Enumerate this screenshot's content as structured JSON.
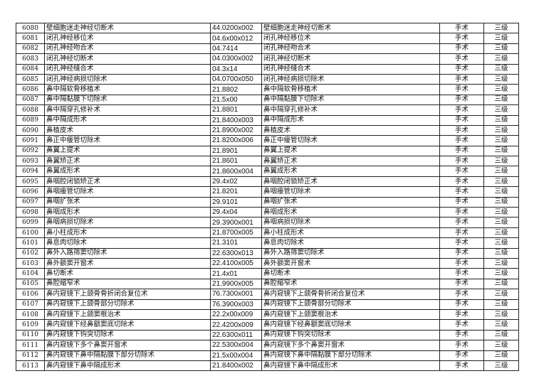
{
  "rows": [
    [
      "6080",
      "壁细胞迷走神经切断术",
      "44.0200x002",
      "壁细胞迷走神经切断术",
      "手术",
      "三级"
    ],
    [
      "6081",
      "闭孔神经移位术",
      "04.6x00x012",
      "闭孔神经移位术",
      "手术",
      "三级"
    ],
    [
      "6082",
      "闭孔神经吻合术",
      "04.7414",
      "闭孔神经吻合术",
      "手术",
      "三级"
    ],
    [
      "6083",
      "闭孔神经切断术",
      "04.0300x002",
      "闭孔神经切断术",
      "手术",
      "三级"
    ],
    [
      "6084",
      "闭孔神经缝合术",
      "04.3x14",
      "闭孔神经缝合术",
      "手术",
      "三级"
    ],
    [
      "6085",
      "闭孔神经病损切除术",
      "04.0700x050",
      "闭孔神经病损切除术",
      "手术",
      "三级"
    ],
    [
      "6086",
      "鼻中隔软骨移植术",
      "21.8802",
      "鼻中隔软骨移植术",
      "手术",
      "三级"
    ],
    [
      "6087",
      "鼻中隔黏膜下切除术",
      "21.5x00",
      "鼻中隔黏膜下切除术",
      "手术",
      "三级"
    ],
    [
      "6088",
      "鼻中隔穿孔修补术",
      "21.8801",
      "鼻中隔穿孔修补术",
      "手术",
      "三级"
    ],
    [
      "6089",
      "鼻中隔成形术",
      "21.8400x003",
      "鼻中隔成形术",
      "手术",
      "三级"
    ],
    [
      "6090",
      "鼻植皮术",
      "21.8900x002",
      "鼻植皮术",
      "手术",
      "三级"
    ],
    [
      "6091",
      "鼻正中瘘管切除术",
      "21.8200x006",
      "鼻正中瘘管切除术",
      "手术",
      "三级"
    ],
    [
      "6092",
      "鼻翼上提术",
      "21.8901",
      "鼻翼上提术",
      "手术",
      "三级"
    ],
    [
      "6093",
      "鼻翼矫正术",
      "21.8601",
      "鼻翼矫正术",
      "手术",
      "三级"
    ],
    [
      "6094",
      "鼻翼成形术",
      "21.8600x004",
      "鼻翼成形术",
      "手术",
      "三级"
    ],
    [
      "6095",
      "鼻咽腔闭锁矫正术",
      "29.4x02",
      "鼻咽腔闭锁矫正术",
      "手术",
      "三级"
    ],
    [
      "6096",
      "鼻咽瘘管切除术",
      "21.8201",
      "鼻咽瘘管切除术",
      "手术",
      "三级"
    ],
    [
      "6097",
      "鼻咽扩张术",
      "29.9101",
      "鼻咽扩张术",
      "手术",
      "三级"
    ],
    [
      "6098",
      "鼻咽成形术",
      "29.4x04",
      "鼻咽成形术",
      "手术",
      "三级"
    ],
    [
      "6099",
      "鼻咽病损切除术",
      "29.3900x001",
      "鼻咽病损切除术",
      "手术",
      "三级"
    ],
    [
      "6100",
      "鼻小柱成形术",
      "21.8700x005",
      "鼻小柱成形术",
      "手术",
      "三级"
    ],
    [
      "6101",
      "鼻息肉切除术",
      "21.3101",
      "鼻息肉切除术",
      "手术",
      "三级"
    ],
    [
      "6102",
      "鼻外入路筛窦切除术",
      "22.6300x013",
      "鼻外入路筛窦切除术",
      "手术",
      "三级"
    ],
    [
      "6103",
      "鼻外额窦开窗术",
      "22.4100x005",
      "鼻外额窦开窗术",
      "手术",
      "三级"
    ],
    [
      "6104",
      "鼻切断术",
      "21.4x01",
      "鼻切断术",
      "手术",
      "三级"
    ],
    [
      "6105",
      "鼻腔缩窄术",
      "21.9900x005",
      "鼻腔缩窄术",
      "手术",
      "三级"
    ],
    [
      "6106",
      "鼻内窥镜下上颌骨骨折闭合复位术",
      "76.7300x001",
      "鼻内窥镜下上颌骨骨折闭合复位术",
      "手术",
      "三级"
    ],
    [
      "6107",
      "鼻内窥镜下上颌骨部分切除术",
      "76.3900x003",
      "鼻内窥镜下上颌骨部分切除术",
      "手术",
      "三级"
    ],
    [
      "6108",
      "鼻内窥镜下上颌窦根治术",
      "22.2x00x009",
      "鼻内窥镜下上颌窦根治术",
      "手术",
      "三级"
    ],
    [
      "6109",
      "鼻内窥镜下经鼻额窦底切除术",
      "22.4200x009",
      "鼻内窥镜下经鼻额窦底切除术",
      "手术",
      "三级"
    ],
    [
      "6110",
      "鼻内窥镜下钩突切除术",
      "22.6300x011",
      "鼻内窥镜下钩突切除术",
      "手术",
      "三级"
    ],
    [
      "6111",
      "鼻内窥镜下多个鼻窦开窗术",
      "22.5300x004",
      "鼻内窥镜下多个鼻窦开窗术",
      "手术",
      "三级"
    ],
    [
      "6112",
      "鼻内窥镜下鼻中隔黏膜下部分切除术",
      "21.5x00x004",
      "鼻内窥镜下鼻中隔黏膜下部分切除术",
      "手术",
      "三级"
    ],
    [
      "6113",
      "鼻内窥镜下鼻中隔成形术",
      "21.8400x002",
      "鼻内窥镜下鼻中隔成形术",
      "手术",
      "三级"
    ]
  ]
}
